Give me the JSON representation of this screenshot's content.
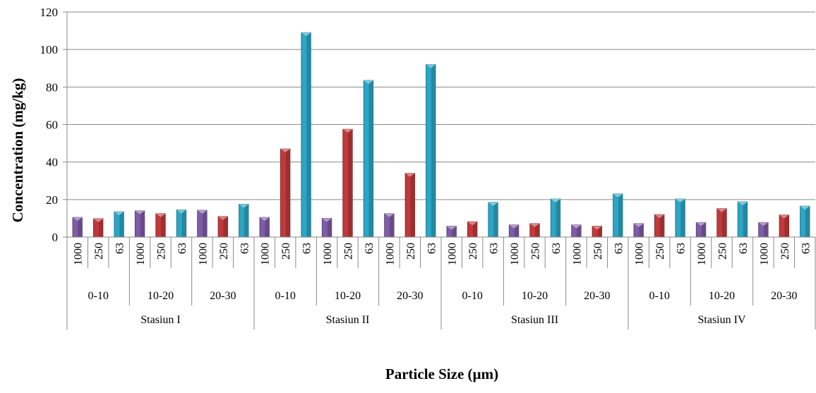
{
  "chart_data": {
    "type": "bar",
    "title": "",
    "xlabel": "Particle Size (µm)",
    "ylabel": "Concentration  (mg/kg)",
    "ylim": [
      0,
      120
    ],
    "yticks": [
      0,
      20,
      40,
      60,
      80,
      100,
      120
    ],
    "grid": true,
    "legend": "none",
    "stations": [
      "Stasiun I",
      "Stasiun II",
      "Stasiun III",
      "Stasiun IV"
    ],
    "depths": [
      "0-10",
      "10-20",
      "20-30"
    ],
    "sizes": [
      "1000",
      "250",
      "63"
    ],
    "size_colors": [
      "#7E5CA6",
      "#C0393B",
      "#2CA6C4"
    ],
    "values": [
      [
        10.5,
        9.8,
        13.5
      ],
      [
        14.0,
        12.5,
        14.5
      ],
      [
        14.3,
        11.0,
        17.5
      ],
      [
        10.5,
        47.0,
        109.0
      ],
      [
        10.0,
        57.5,
        83.5
      ],
      [
        12.5,
        34.0,
        92.0
      ],
      [
        5.8,
        8.2,
        18.5
      ],
      [
        6.5,
        7.2,
        20.3
      ],
      [
        6.5,
        5.8,
        23.0
      ],
      [
        7.2,
        12.0,
        20.3
      ],
      [
        7.8,
        15.2,
        18.8
      ],
      [
        7.8,
        11.8,
        16.5
      ]
    ]
  }
}
